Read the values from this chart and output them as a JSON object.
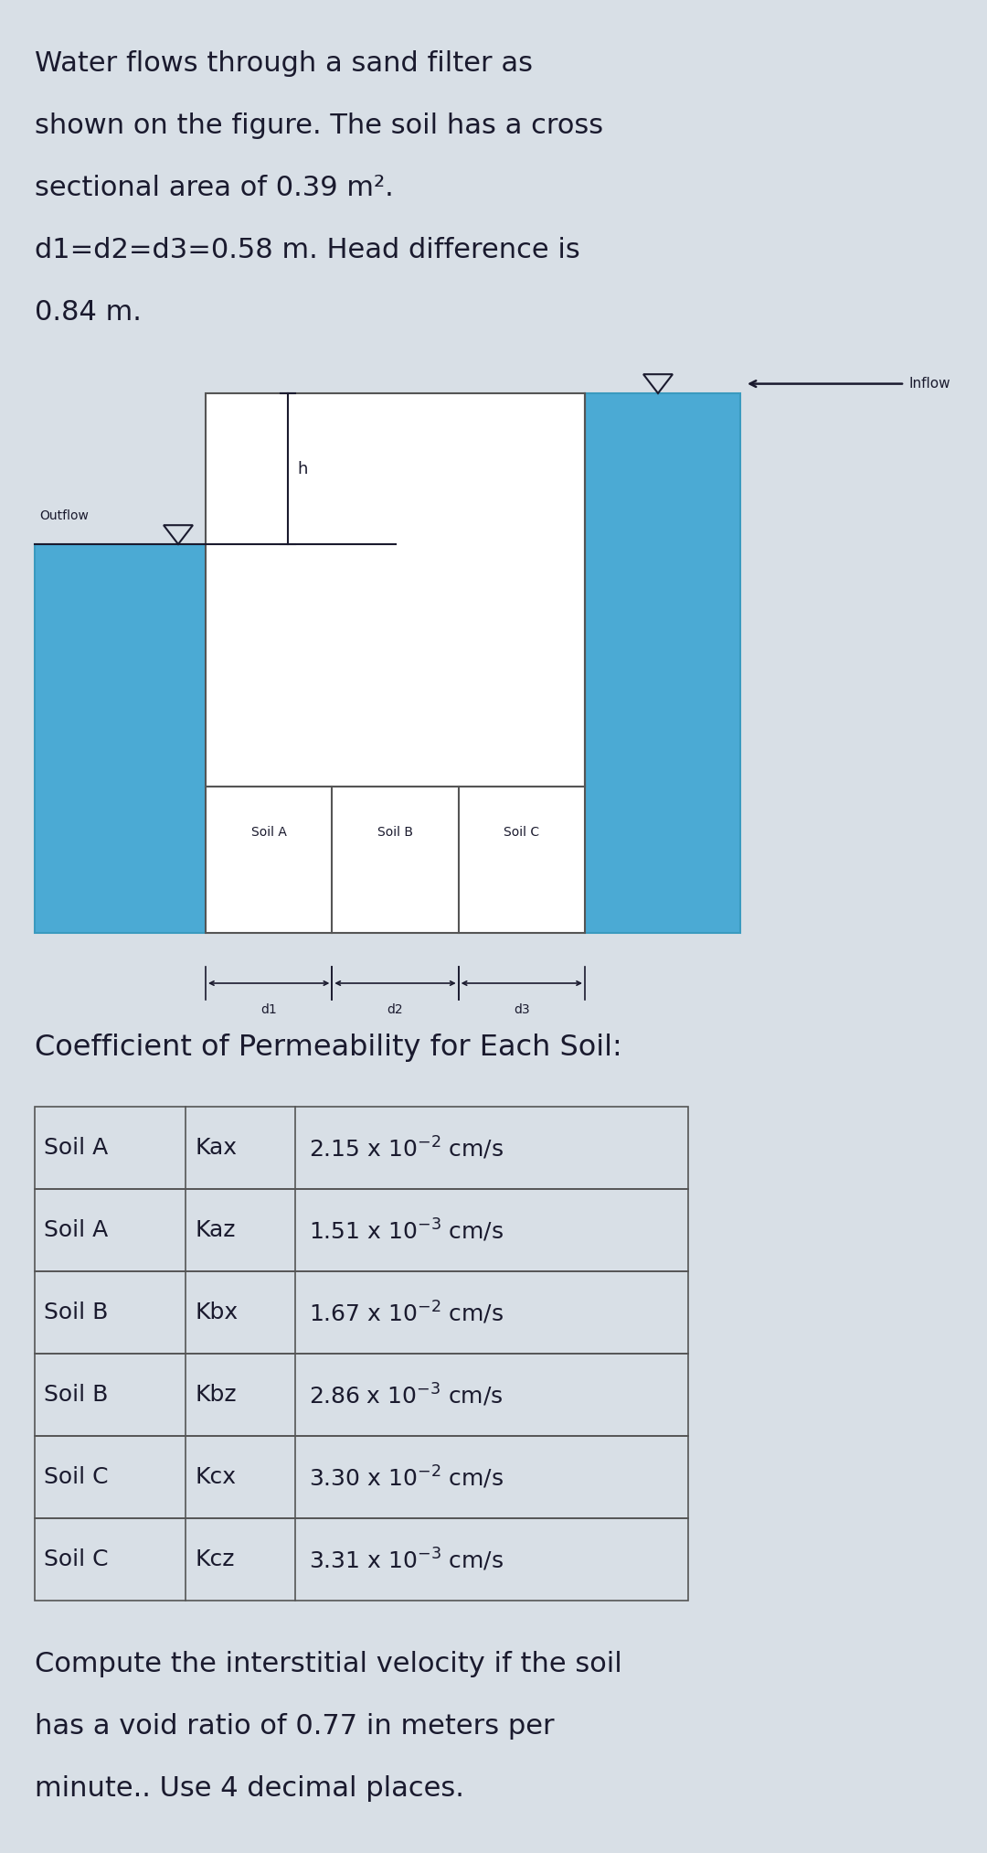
{
  "bg_color": "#d8dfe6",
  "text_color": "#1a1a2e",
  "blue_color": "#4baad4",
  "white_color": "#ffffff",
  "intro_lines": [
    "Water flows through a sand filter as",
    "shown on the figure. The soil has a cross",
    "sectional area of 0.39 m².",
    "d1=d2=d3=0.58 m. Head difference is",
    "0.84 m."
  ],
  "coeff_title": "Coefficient of Permeability for Each Soil:",
  "table_rows": [
    [
      "Soil A",
      "Kax",
      "2.15 x 10$^{-2}$ cm/s"
    ],
    [
      "Soil A",
      "Kaz",
      "1.51 x 10$^{-3}$ cm/s"
    ],
    [
      "Soil B",
      "Kbx",
      "1.67 x 10$^{-2}$ cm/s"
    ],
    [
      "Soil B",
      "Kbz",
      "2.86 x 10$^{-3}$ cm/s"
    ],
    [
      "Soil C",
      "Kcx",
      "3.30 x 10$^{-2}$ cm/s"
    ],
    [
      "Soil C",
      "Kcz",
      "3.31 x 10$^{-3}$ cm/s"
    ]
  ],
  "question_lines": [
    "Compute the interstitial velocity if the soil",
    "has a void ratio of 0.77 in meters per",
    "minute.. Use 4 decimal places."
  ],
  "inflow_label": "Inflow",
  "outflow_label": "Outflow",
  "h_label": "h",
  "soil_labels": [
    "Soil A",
    "Soil B",
    "Soil C"
  ],
  "d_labels": [
    "d1",
    "d2",
    "d3"
  ]
}
